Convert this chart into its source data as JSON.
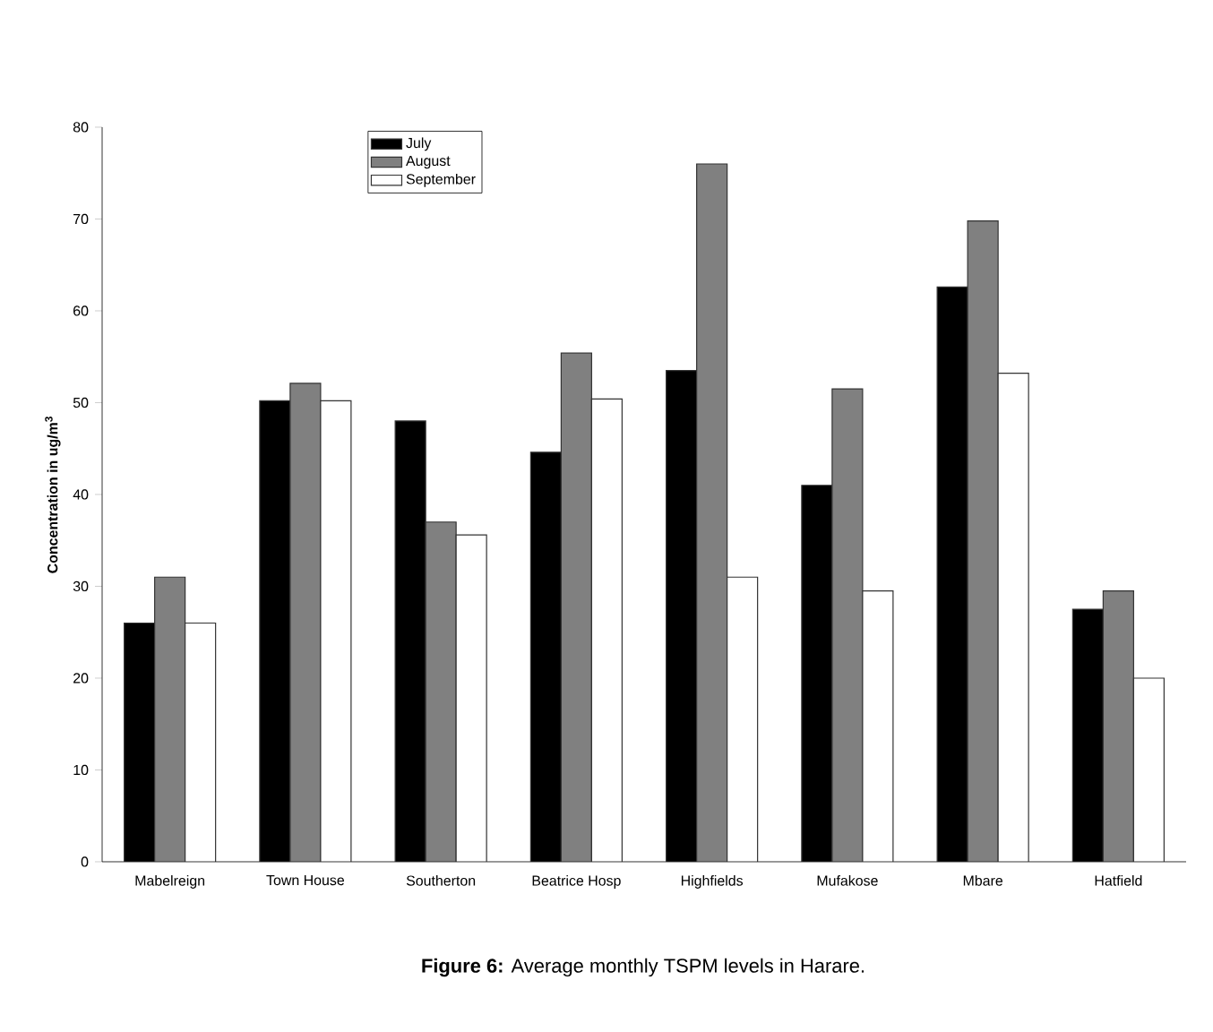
{
  "chart_data": {
    "type": "bar",
    "title": "**Figure 6:** Average monthly TSPM levels in Harare.",
    "ylabel": "Concentration in ug/m$^{3}$",
    "categories": [
      "Mabelreign",
      "Town House",
      "Southerton",
      "Beatrice Hosp",
      "Highfields",
      "Mufakose",
      "Mbare",
      "Hatfield"
    ],
    "series": [
      {
        "name": "July",
        "color": "#000000",
        "values": [
          26,
          50.2,
          48,
          44.6,
          53.5,
          41,
          62.6,
          27.5
        ]
      },
      {
        "name": "August",
        "color": "#808080",
        "values": [
          31,
          52.1,
          37,
          55.4,
          76,
          51.5,
          69.8,
          29.5
        ]
      },
      {
        "name": "September",
        "color": "#ffffff",
        "values": [
          26,
          50.2,
          35.6,
          50.4,
          31,
          29.5,
          53.2,
          20
        ]
      }
    ],
    "ylim": [
      0,
      80
    ],
    "yticks": [
      0,
      10,
      20,
      30,
      40,
      50,
      60,
      70,
      80
    ],
    "grid": false,
    "legend": "top left"
  }
}
